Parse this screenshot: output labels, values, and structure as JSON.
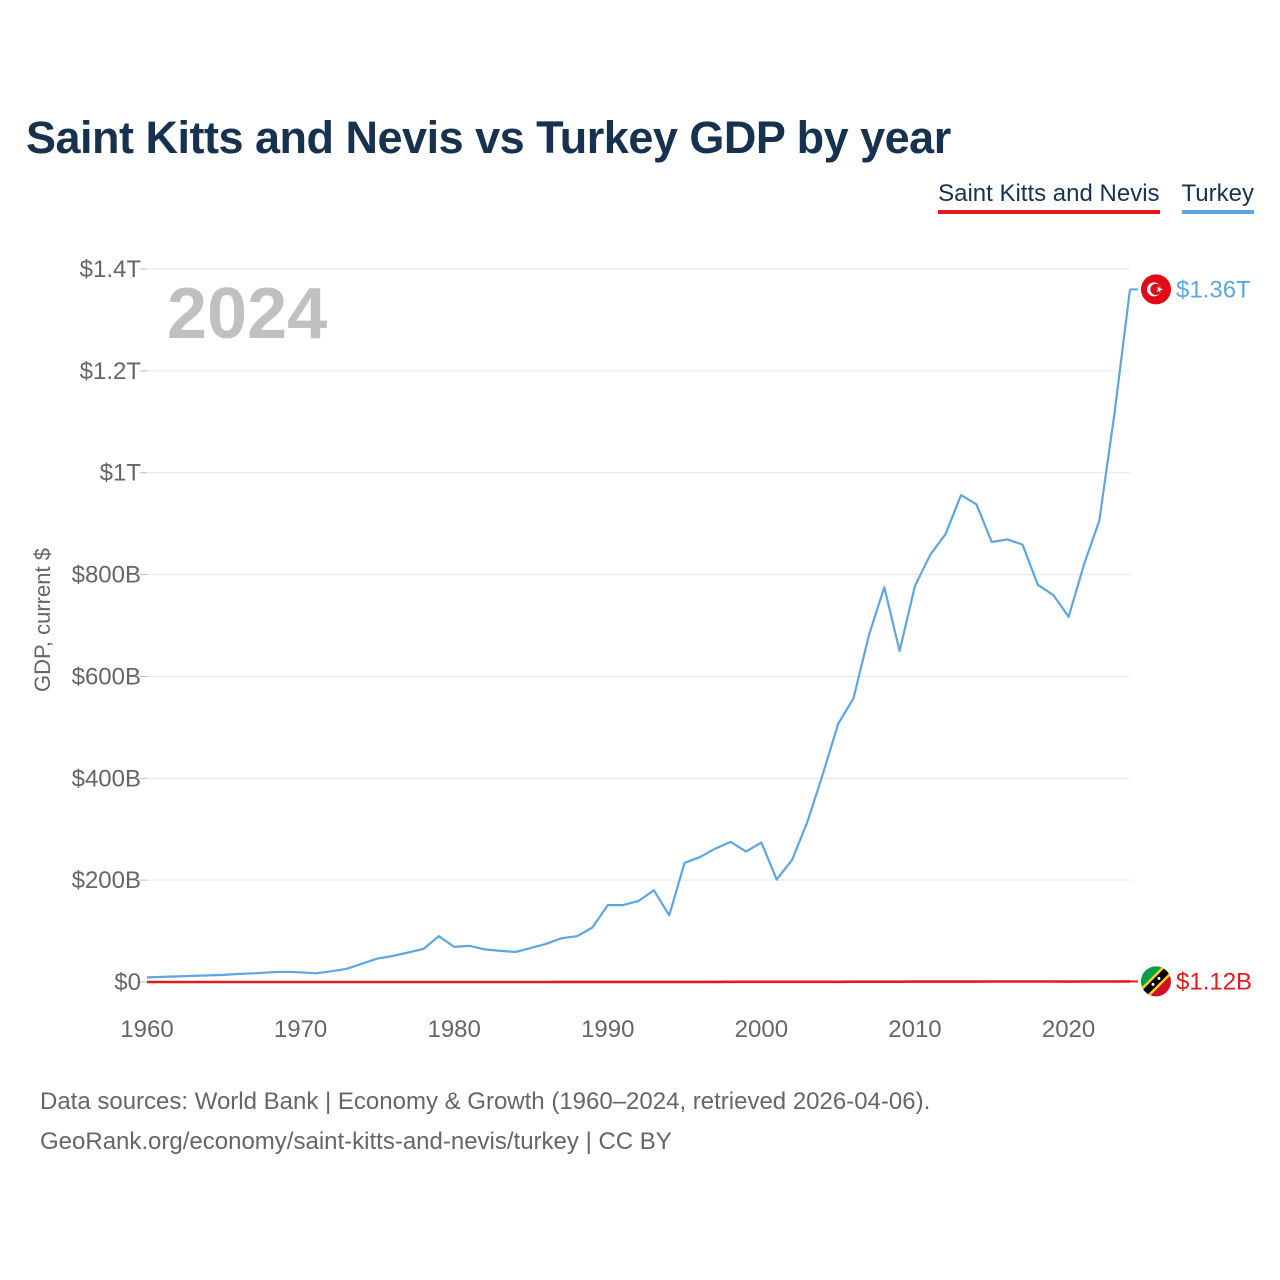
{
  "chart_data": {
    "type": "line",
    "title": "Saint Kitts and Nevis vs Turkey GDP by year",
    "xlabel": "",
    "ylabel": "GDP, current $",
    "xlim": [
      1960,
      2024
    ],
    "ylim": [
      0,
      1400000000000
    ],
    "year_label": "2024",
    "x_ticks": [
      {
        "value": 1960,
        "label": "1960"
      },
      {
        "value": 1970,
        "label": "1970"
      },
      {
        "value": 1980,
        "label": "1980"
      },
      {
        "value": 1990,
        "label": "1990"
      },
      {
        "value": 2000,
        "label": "2000"
      },
      {
        "value": 2010,
        "label": "2010"
      },
      {
        "value": 2020,
        "label": "2020"
      }
    ],
    "y_ticks": [
      {
        "value": 0,
        "label": "$0"
      },
      {
        "value": 200000000000,
        "label": "$200B"
      },
      {
        "value": 400000000000,
        "label": "$400B"
      },
      {
        "value": 600000000000,
        "label": "$600B"
      },
      {
        "value": 800000000000,
        "label": "$800B"
      },
      {
        "value": 1000000000000,
        "label": "$1T"
      },
      {
        "value": 1200000000000,
        "label": "$1.2T"
      },
      {
        "value": 1400000000000,
        "label": "$1.4T"
      }
    ],
    "x": [
      1960,
      1961,
      1962,
      1963,
      1964,
      1965,
      1966,
      1967,
      1968,
      1969,
      1970,
      1971,
      1972,
      1973,
      1974,
      1975,
      1976,
      1977,
      1978,
      1979,
      1980,
      1981,
      1982,
      1983,
      1984,
      1985,
      1986,
      1987,
      1988,
      1989,
      1990,
      1991,
      1992,
      1993,
      1994,
      1995,
      1996,
      1997,
      1998,
      1999,
      2000,
      2001,
      2002,
      2003,
      2004,
      2005,
      2006,
      2007,
      2008,
      2009,
      2010,
      2011,
      2012,
      2013,
      2014,
      2015,
      2016,
      2017,
      2018,
      2019,
      2020,
      2021,
      2022,
      2023,
      2024
    ],
    "series": [
      {
        "name": "Saint Kitts and Nevis",
        "color": "#e31b1b",
        "end_label": "$1.12B",
        "flag_icon": "saint-kitts-and-nevis-flag-icon",
        "values": [
          0.01,
          0.01,
          0.01,
          0.01,
          0.01,
          0.01,
          0.01,
          0.01,
          0.01,
          0.01,
          0.02,
          0.02,
          0.02,
          0.03,
          0.03,
          0.03,
          0.03,
          0.04,
          0.04,
          0.05,
          0.05,
          0.05,
          0.05,
          0.06,
          0.07,
          0.07,
          0.08,
          0.1,
          0.11,
          0.13,
          0.16,
          0.16,
          0.18,
          0.2,
          0.22,
          0.25,
          0.26,
          0.29,
          0.3,
          0.32,
          0.33,
          0.35,
          0.36,
          0.37,
          0.4,
          0.45,
          0.52,
          0.56,
          0.62,
          0.6,
          0.7,
          0.75,
          0.77,
          0.8,
          0.86,
          0.92,
          0.96,
          0.98,
          1.02,
          1.05,
          0.85,
          0.9,
          0.98,
          1.06,
          1.12
        ]
      },
      {
        "name": "Turkey",
        "color": "#5ea6e2",
        "end_label": "$1.36T",
        "flag_icon": "turkey-flag-icon",
        "values": [
          9,
          10,
          11,
          12,
          13,
          14,
          16,
          17,
          19,
          20,
          19,
          17,
          21,
          26,
          36,
          46,
          51,
          58,
          65,
          90,
          69,
          71,
          64,
          61,
          59,
          67,
          75,
          86,
          90,
          107,
          151,
          151,
          159,
          180,
          131,
          234,
          245,
          262,
          275,
          256,
          274,
          201,
          240,
          315,
          408,
          507,
          557,
          681,
          775,
          650,
          778,
          839,
          880,
          956,
          938,
          864,
          869,
          859,
          780,
          760,
          717,
          819,
          906,
          1118,
          1360
        ]
      }
    ]
  },
  "footer": {
    "line1": "Data sources: World Bank | Economy & Growth (1960–2024, retrieved 2026-04-06).",
    "line2": "GeoRank.org/economy/saint-kitts-and-nevis/turkey | CC BY"
  }
}
